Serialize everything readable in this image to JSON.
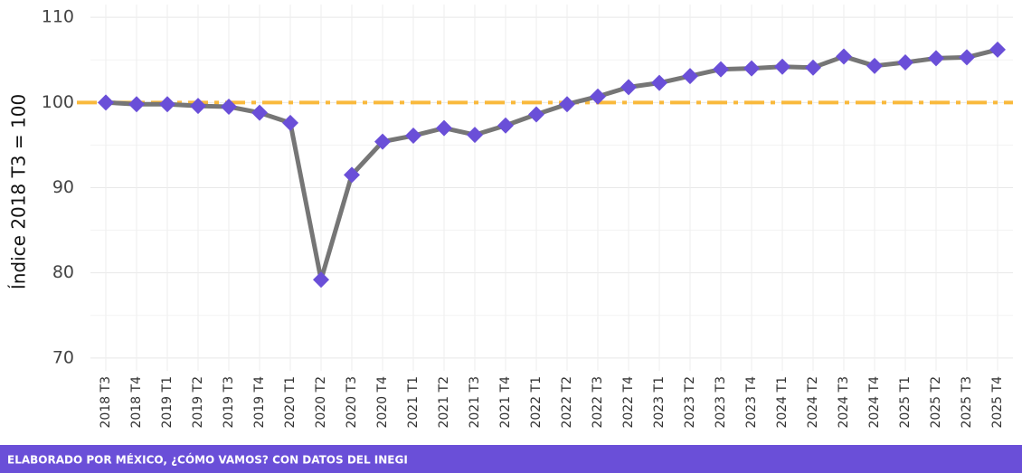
{
  "chart_data": {
    "type": "line",
    "y_label": "Índice 2018 T3 = 100",
    "footer": "ELABORADO POR MÉXICO, ¿CÓMO VAMOS? CON DATOS DEL INEGI",
    "categories": [
      "2018 T3",
      "2018 T4",
      "2019 T1",
      "2019 T2",
      "2019 T3",
      "2019 T4",
      "2020 T1",
      "2020 T2",
      "2020 T3",
      "2020 T4",
      "2021 T1",
      "2021 T2",
      "2021 T3",
      "2021 T4",
      "2022 T1",
      "2022 T2",
      "2022 T3",
      "2022 T4",
      "2023 T1",
      "2023 T2",
      "2023 T3",
      "2023 T4",
      "2024 T1",
      "2024 T2",
      "2024 T3",
      "2024 T4",
      "2025 T1",
      "2025 T2",
      "2025 T3",
      "2025 T4"
    ],
    "series": [
      {
        "line_color": "#767676",
        "color": "#6a4fd8",
        "values": [
          100,
          99.8,
          99.8,
          99.6,
          99.5,
          98.8,
          97.6,
          79.2,
          91.5,
          95.4,
          96.1,
          97.0,
          96.2,
          97.3,
          98.6,
          99.8,
          100.7,
          101.8,
          102.3,
          103.1,
          103.9,
          104.0,
          104.2,
          104.1,
          105.4,
          104.3,
          104.7,
          105.2,
          105.3,
          106.2
        ]
      }
    ],
    "reference_line": {
      "value": 100,
      "color": "#f9b93c"
    },
    "ylim": [
      68.5,
      111.5
    ],
    "yticks": [
      70,
      80,
      90,
      100,
      110
    ],
    "minor_yticks": [
      75,
      85,
      95,
      105
    ],
    "grid": true
  }
}
